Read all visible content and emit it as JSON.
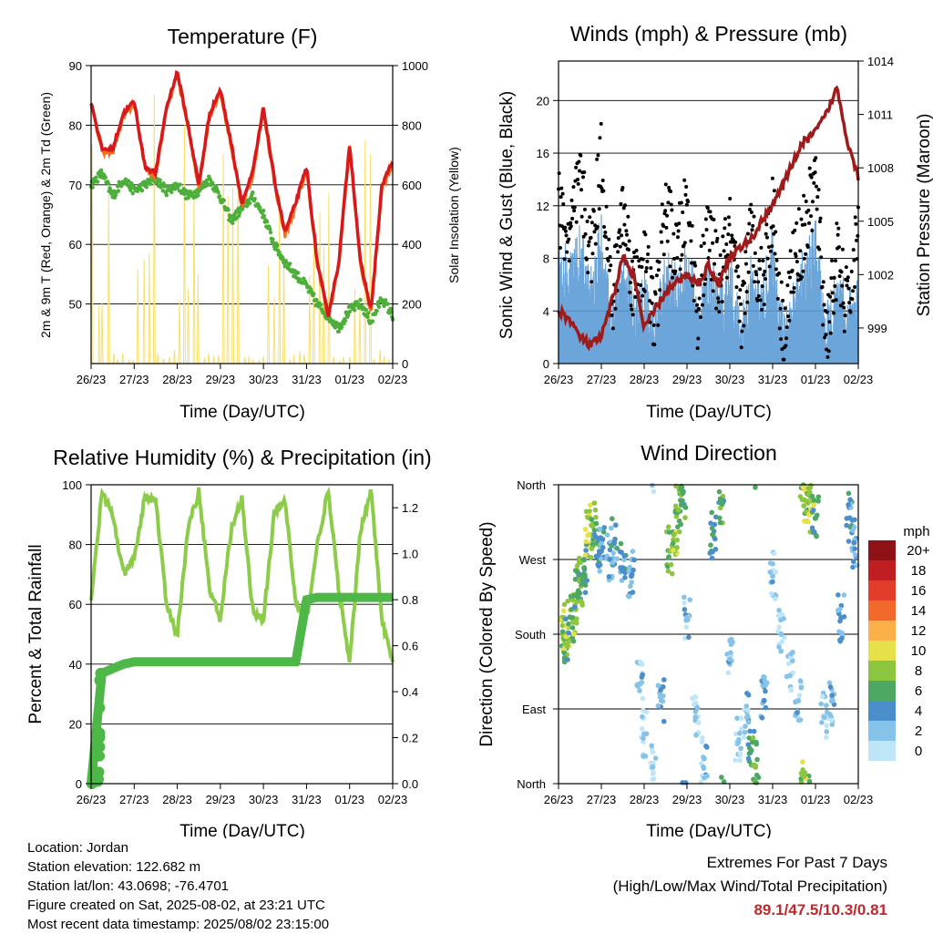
{
  "x_ticks": [
    "26/23",
    "27/23",
    "28/23",
    "29/23",
    "30/23",
    "31/23",
    "01/23",
    "02/23"
  ],
  "x_label": "Time (Day/UTC)",
  "panels": {
    "temperature": {
      "title": "Temperature (F)",
      "y_label": "2m & 9m T (Red, Orange) & 2m Td (Green)",
      "y2_label": "Solar Insolation (Yellow)",
      "y_ticks": [
        "90",
        "80",
        "70",
        "60",
        "50"
      ],
      "y2_ticks": [
        "1000",
        "800",
        "600",
        "400",
        "200",
        "0"
      ]
    },
    "winds": {
      "title": "Winds (mph) & Pressure (mb)",
      "y_label": "Sonic Wind & Gust (Blue, Black)",
      "y2_label": "Station Pressure (Maroon)",
      "y_ticks": [
        "20",
        "16",
        "12",
        "8",
        "4",
        "0"
      ],
      "y2_ticks": [
        "1014",
        "1011",
        "1008",
        "1005",
        "1002",
        "999"
      ]
    },
    "humidity": {
      "title": "Relative Humidity (%) & Precipitation (in)",
      "y_label": "Percent & Total Rainfall",
      "y_ticks": [
        "100",
        "80",
        "60",
        "40",
        "20",
        "0"
      ],
      "y2_ticks": [
        "1.2",
        "1.0",
        "0.8",
        "0.6",
        "0.4",
        "0.2",
        "0.0"
      ]
    },
    "direction": {
      "title": "Wind Direction",
      "y_label": "Direction (Colored By Speed)",
      "y_ticks": [
        "North",
        "West",
        "South",
        "East",
        "North"
      ],
      "legend_title": "mph",
      "legend_labels": [
        "20+",
        "18",
        "16",
        "14",
        "12",
        "10",
        "8",
        "6",
        "4",
        "2",
        "0"
      ]
    }
  },
  "footer": {
    "location": "Location: Jordan",
    "elevation": "Station elevation: 122.682 m",
    "latlon": "Station lat/lon: 43.0698; -76.4701",
    "created": "Figure created on Sat, 2025-08-02, at 23:21 UTC",
    "recent": "Most recent data timestamp: 2025/08/02 23:15:00",
    "extremes_title": "Extremes For Past 7 Days",
    "extremes_sub": "(High/Low/Max Wind/Total Precipitation)",
    "extremes_value": "89.1/47.5/10.3/0.81"
  },
  "colors": {
    "temp_2m": "#d7191c",
    "temp_9m": "#f46d1f",
    "dewpoint": "#4daf3a",
    "solar": "#f7e06a",
    "gust": "#000000",
    "wind": "#5b9bd5",
    "pressure": "#9e1b1b",
    "rh": "#8ccc4a",
    "precip": "#4db848",
    "speed_scale": [
      "#bfe6f7",
      "#86c3ea",
      "#4a8fcb",
      "#4da863",
      "#8cc63f",
      "#e6e04a",
      "#fbb04a",
      "#f26a2b",
      "#e23c2a",
      "#c01f22",
      "#8e1215"
    ]
  },
  "chart_data": [
    {
      "type": "line",
      "title": "Temperature (F)",
      "xlabel": "Time (Day/UTC)",
      "ylabel": "2m & 9m T (Red, Orange) & 2m Td (Green)",
      "y2label": "Solar Insolation (Yellow)",
      "xlim": [
        0,
        7
      ],
      "ylim": [
        40,
        90
      ],
      "y2lim": [
        0,
        1000
      ],
      "x": [
        0,
        0.25,
        0.5,
        0.75,
        1,
        1.25,
        1.5,
        1.75,
        2,
        2.25,
        2.5,
        2.75,
        3,
        3.25,
        3.5,
        3.75,
        4,
        4.25,
        4.5,
        4.75,
        5,
        5.25,
        5.5,
        5.75,
        6,
        6.25,
        6.5,
        6.75,
        7
      ],
      "series": [
        {
          "name": "2m T",
          "values": [
            84,
            76,
            76,
            82,
            84,
            73,
            72,
            83,
            89,
            80,
            70,
            82,
            86,
            77,
            67,
            72,
            83,
            71,
            62,
            67,
            73,
            57,
            48,
            57,
            77,
            57,
            49,
            70,
            74
          ]
        },
        {
          "name": "2m Td",
          "values": [
            70,
            72,
            68,
            71,
            69,
            70,
            71,
            69,
            70,
            68,
            69,
            71,
            68,
            64,
            66,
            68,
            65,
            60,
            57,
            55,
            53,
            50,
            48,
            46,
            49,
            50,
            47,
            51,
            48
          ]
        },
        {
          "name": "Solar",
          "values": [
            0,
            850,
            0,
            600,
            0,
            950,
            0,
            900,
            0,
            880,
            0,
            850,
            0,
            700,
            0,
            900,
            0,
            850,
            0,
            750,
            0,
            550,
            0,
            800,
            0,
            950,
            0,
            600,
            0
          ]
        }
      ]
    },
    {
      "type": "line",
      "title": "Winds (mph) & Pressure (mb)",
      "xlabel": "Time (Day/UTC)",
      "ylabel": "Sonic Wind & Gust (Blue, Black)",
      "y2label": "Station Pressure (Maroon)",
      "xlim": [
        0,
        7
      ],
      "ylim": [
        0,
        23
      ],
      "y2lim": [
        997,
        1014
      ],
      "x": [
        0,
        0.25,
        0.5,
        0.75,
        1,
        1.25,
        1.5,
        1.75,
        2,
        2.25,
        2.5,
        2.75,
        3,
        3.25,
        3.5,
        3.75,
        4,
        4.25,
        4.5,
        4.75,
        5,
        5.25,
        5.5,
        5.75,
        6,
        6.25,
        6.5,
        6.75,
        7
      ],
      "series": [
        {
          "name": "Gust",
          "values": [
            12,
            9,
            14,
            8,
            16,
            4,
            12,
            6,
            8,
            3,
            12,
            8,
            12,
            4,
            10,
            6,
            10,
            3,
            10,
            6,
            12,
            2,
            8,
            10,
            14,
            2,
            8,
            4,
            10
          ]
        },
        {
          "name": "Wind",
          "values": [
            6,
            5,
            7,
            4,
            8,
            2,
            6,
            3,
            4,
            1,
            6,
            4,
            6,
            2,
            5,
            3,
            5,
            1,
            5,
            3,
            7,
            1,
            4,
            5,
            8,
            1,
            4,
            2,
            5
          ]
        },
        {
          "name": "Pressure",
          "values": [
            1000,
            999.5,
            998.5,
            998,
            998.5,
            1000.5,
            1003,
            1002,
            999,
            1000,
            1001,
            1001.5,
            1002,
            1001.5,
            1002.5,
            1001.5,
            1003,
            1003.5,
            1004,
            1005,
            1006,
            1007,
            1008.5,
            1009.5,
            1010,
            1011,
            1012.5,
            1009.5,
            1007.5
          ]
        }
      ]
    },
    {
      "type": "line",
      "title": "Relative Humidity (%) & Precipitation (in)",
      "xlabel": "Time (Day/UTC)",
      "ylabel": "Percent & Total Rainfall",
      "ylim": [
        0,
        100
      ],
      "y2lim": [
        0,
        1.3
      ],
      "xlim": [
        0,
        7
      ],
      "x": [
        0,
        0.25,
        0.5,
        0.75,
        1,
        1.25,
        1.5,
        1.75,
        2,
        2.25,
        2.5,
        2.75,
        3,
        3.25,
        3.5,
        3.75,
        4,
        4.25,
        4.5,
        4.75,
        5,
        5.25,
        5.5,
        5.75,
        6,
        6.25,
        6.5,
        6.75,
        7
      ],
      "series": [
        {
          "name": "RH",
          "values": [
            62,
            97,
            90,
            70,
            75,
            96,
            95,
            60,
            50,
            85,
            98,
            65,
            55,
            85,
            95,
            58,
            55,
            90,
            95,
            60,
            55,
            80,
            98,
            65,
            40,
            85,
            98,
            55,
            40
          ]
        },
        {
          "name": "Precipitation",
          "values": [
            0,
            0.48,
            0.5,
            0.52,
            0.53,
            0.53,
            0.53,
            0.53,
            0.53,
            0.53,
            0.53,
            0.53,
            0.53,
            0.53,
            0.53,
            0.53,
            0.53,
            0.53,
            0.53,
            0.53,
            0.8,
            0.81,
            0.81,
            0.81,
            0.81,
            0.81,
            0.81,
            0.81,
            0.81
          ]
        }
      ]
    },
    {
      "type": "scatter",
      "title": "Wind Direction",
      "xlabel": "Time (Day/UTC)",
      "ylabel": "Direction (Colored By Speed)",
      "xlim": [
        0,
        7
      ],
      "ylim": [
        0,
        360
      ],
      "legend_title": "mph",
      "speed_bins": [
        20,
        18,
        16,
        14,
        12,
        10,
        8,
        6,
        4,
        2,
        0
      ],
      "points": [
        {
          "x": 0.1,
          "y": 180,
          "s": 8
        },
        {
          "x": 0.15,
          "y": 175,
          "s": 6
        },
        {
          "x": 0.2,
          "y": 190,
          "s": 9
        },
        {
          "x": 0.3,
          "y": 200,
          "s": 6
        },
        {
          "x": 0.4,
          "y": 210,
          "s": 8
        },
        {
          "x": 0.45,
          "y": 230,
          "s": 6
        },
        {
          "x": 0.5,
          "y": 245,
          "s": 7
        },
        {
          "x": 0.6,
          "y": 260,
          "s": 5
        },
        {
          "x": 0.7,
          "y": 300,
          "s": 9
        },
        {
          "x": 0.8,
          "y": 310,
          "s": 8
        },
        {
          "x": 0.9,
          "y": 290,
          "s": 5
        },
        {
          "x": 1.0,
          "y": 280,
          "s": 4
        },
        {
          "x": 1.2,
          "y": 270,
          "s": 3
        },
        {
          "x": 1.3,
          "y": 290,
          "s": 4
        },
        {
          "x": 1.5,
          "y": 260,
          "s": 4
        },
        {
          "x": 1.7,
          "y": 250,
          "s": 3
        },
        {
          "x": 1.9,
          "y": 120,
          "s": 2
        },
        {
          "x": 2.0,
          "y": 60,
          "s": 1
        },
        {
          "x": 2.2,
          "y": 20,
          "s": 1
        },
        {
          "x": 2.4,
          "y": 100,
          "s": 2
        },
        {
          "x": 2.6,
          "y": 280,
          "s": 7
        },
        {
          "x": 2.7,
          "y": 300,
          "s": 8
        },
        {
          "x": 2.8,
          "y": 330,
          "s": 7
        },
        {
          "x": 2.9,
          "y": 350,
          "s": 6
        },
        {
          "x": 3.0,
          "y": 200,
          "s": 2
        },
        {
          "x": 3.2,
          "y": 80,
          "s": 1
        },
        {
          "x": 3.4,
          "y": 30,
          "s": 2
        },
        {
          "x": 3.6,
          "y": 300,
          "s": 5
        },
        {
          "x": 3.8,
          "y": 340,
          "s": 6
        },
        {
          "x": 4.0,
          "y": 150,
          "s": 2
        },
        {
          "x": 4.2,
          "y": 50,
          "s": 1
        },
        {
          "x": 4.4,
          "y": 80,
          "s": 2
        },
        {
          "x": 4.5,
          "y": 40,
          "s": 6
        },
        {
          "x": 4.6,
          "y": 20,
          "s": 7
        },
        {
          "x": 4.8,
          "y": 100,
          "s": 3
        },
        {
          "x": 5.0,
          "y": 250,
          "s": 2
        },
        {
          "x": 5.2,
          "y": 180,
          "s": 1
        },
        {
          "x": 5.4,
          "y": 130,
          "s": 1
        },
        {
          "x": 5.6,
          "y": 100,
          "s": 2
        },
        {
          "x": 5.7,
          "y": 10,
          "s": 8
        },
        {
          "x": 5.8,
          "y": 340,
          "s": 8
        },
        {
          "x": 5.9,
          "y": 330,
          "s": 9
        },
        {
          "x": 6.0,
          "y": 320,
          "s": 6
        },
        {
          "x": 6.2,
          "y": 80,
          "s": 1
        },
        {
          "x": 6.4,
          "y": 100,
          "s": 2
        },
        {
          "x": 6.6,
          "y": 200,
          "s": 3
        },
        {
          "x": 6.8,
          "y": 320,
          "s": 4
        },
        {
          "x": 6.9,
          "y": 290,
          "s": 3
        }
      ]
    }
  ]
}
